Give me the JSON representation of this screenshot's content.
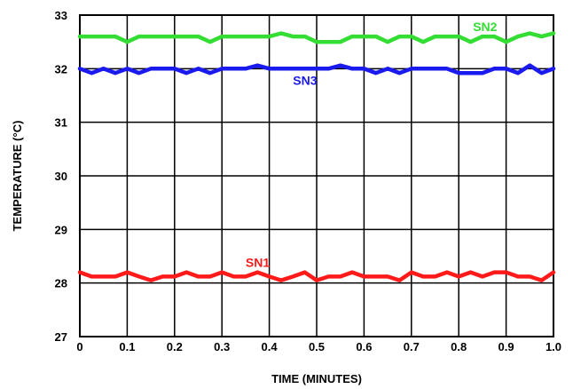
{
  "chart_data": {
    "type": "line",
    "xlabel": "TIME (MINUTES)",
    "ylabel": "TEMPERATURE (°C)",
    "xlim": [
      0,
      1.0
    ],
    "ylim": [
      27,
      33
    ],
    "x_ticks": [
      "0",
      "0.1",
      "0.2",
      "0.3",
      "0.4",
      "0.5",
      "0.6",
      "0.7",
      "0.8",
      "0.9",
      "1.0"
    ],
    "y_ticks": [
      "27",
      "28",
      "29",
      "30",
      "31",
      "32",
      "33"
    ],
    "grid": true,
    "x": [
      0,
      0.025,
      0.05,
      0.075,
      0.1,
      0.125,
      0.15,
      0.175,
      0.2,
      0.225,
      0.25,
      0.275,
      0.3,
      0.325,
      0.35,
      0.375,
      0.4,
      0.425,
      0.45,
      0.475,
      0.5,
      0.525,
      0.55,
      0.575,
      0.6,
      0.625,
      0.65,
      0.675,
      0.7,
      0.725,
      0.75,
      0.775,
      0.8,
      0.825,
      0.85,
      0.875,
      0.9,
      0.925,
      0.95,
      0.975,
      1.0
    ],
    "series": [
      {
        "name": "SN1",
        "color": "#ff1a1a",
        "label_at": [
          0.35,
          28.3
        ],
        "values": [
          28.2,
          28.12,
          28.12,
          28.12,
          28.2,
          28.12,
          28.05,
          28.12,
          28.12,
          28.2,
          28.12,
          28.12,
          28.2,
          28.12,
          28.12,
          28.2,
          28.12,
          28.05,
          28.12,
          28.2,
          28.05,
          28.12,
          28.12,
          28.2,
          28.12,
          28.12,
          28.12,
          28.05,
          28.2,
          28.12,
          28.12,
          28.2,
          28.12,
          28.2,
          28.12,
          28.2,
          28.2,
          28.12,
          28.12,
          28.05,
          28.2
        ]
      },
      {
        "name": "SN2",
        "color": "#33dd33",
        "label_at": [
          0.83,
          32.7
        ],
        "values": [
          32.6,
          32.6,
          32.6,
          32.6,
          32.5,
          32.6,
          32.6,
          32.6,
          32.6,
          32.6,
          32.6,
          32.5,
          32.6,
          32.6,
          32.6,
          32.6,
          32.6,
          32.66,
          32.6,
          32.6,
          32.5,
          32.5,
          32.5,
          32.6,
          32.6,
          32.6,
          32.5,
          32.6,
          32.6,
          32.5,
          32.6,
          32.6,
          32.6,
          32.5,
          32.6,
          32.6,
          32.5,
          32.6,
          32.66,
          32.6,
          32.66
        ]
      },
      {
        "name": "SN3",
        "color": "#1a1aee",
        "label_at": [
          0.45,
          31.7
        ],
        "values": [
          32.0,
          31.92,
          32.0,
          31.92,
          32.0,
          31.92,
          32.0,
          32.0,
          32.0,
          31.92,
          32.0,
          31.92,
          32.0,
          32.0,
          32.0,
          32.06,
          32.0,
          32.0,
          32.0,
          32.0,
          32.0,
          32.0,
          32.06,
          32.0,
          32.0,
          31.92,
          32.0,
          31.92,
          32.0,
          32.0,
          32.0,
          32.0,
          31.92,
          31.92,
          31.92,
          32.0,
          32.0,
          31.92,
          32.06,
          31.92,
          32.0
        ]
      }
    ]
  }
}
